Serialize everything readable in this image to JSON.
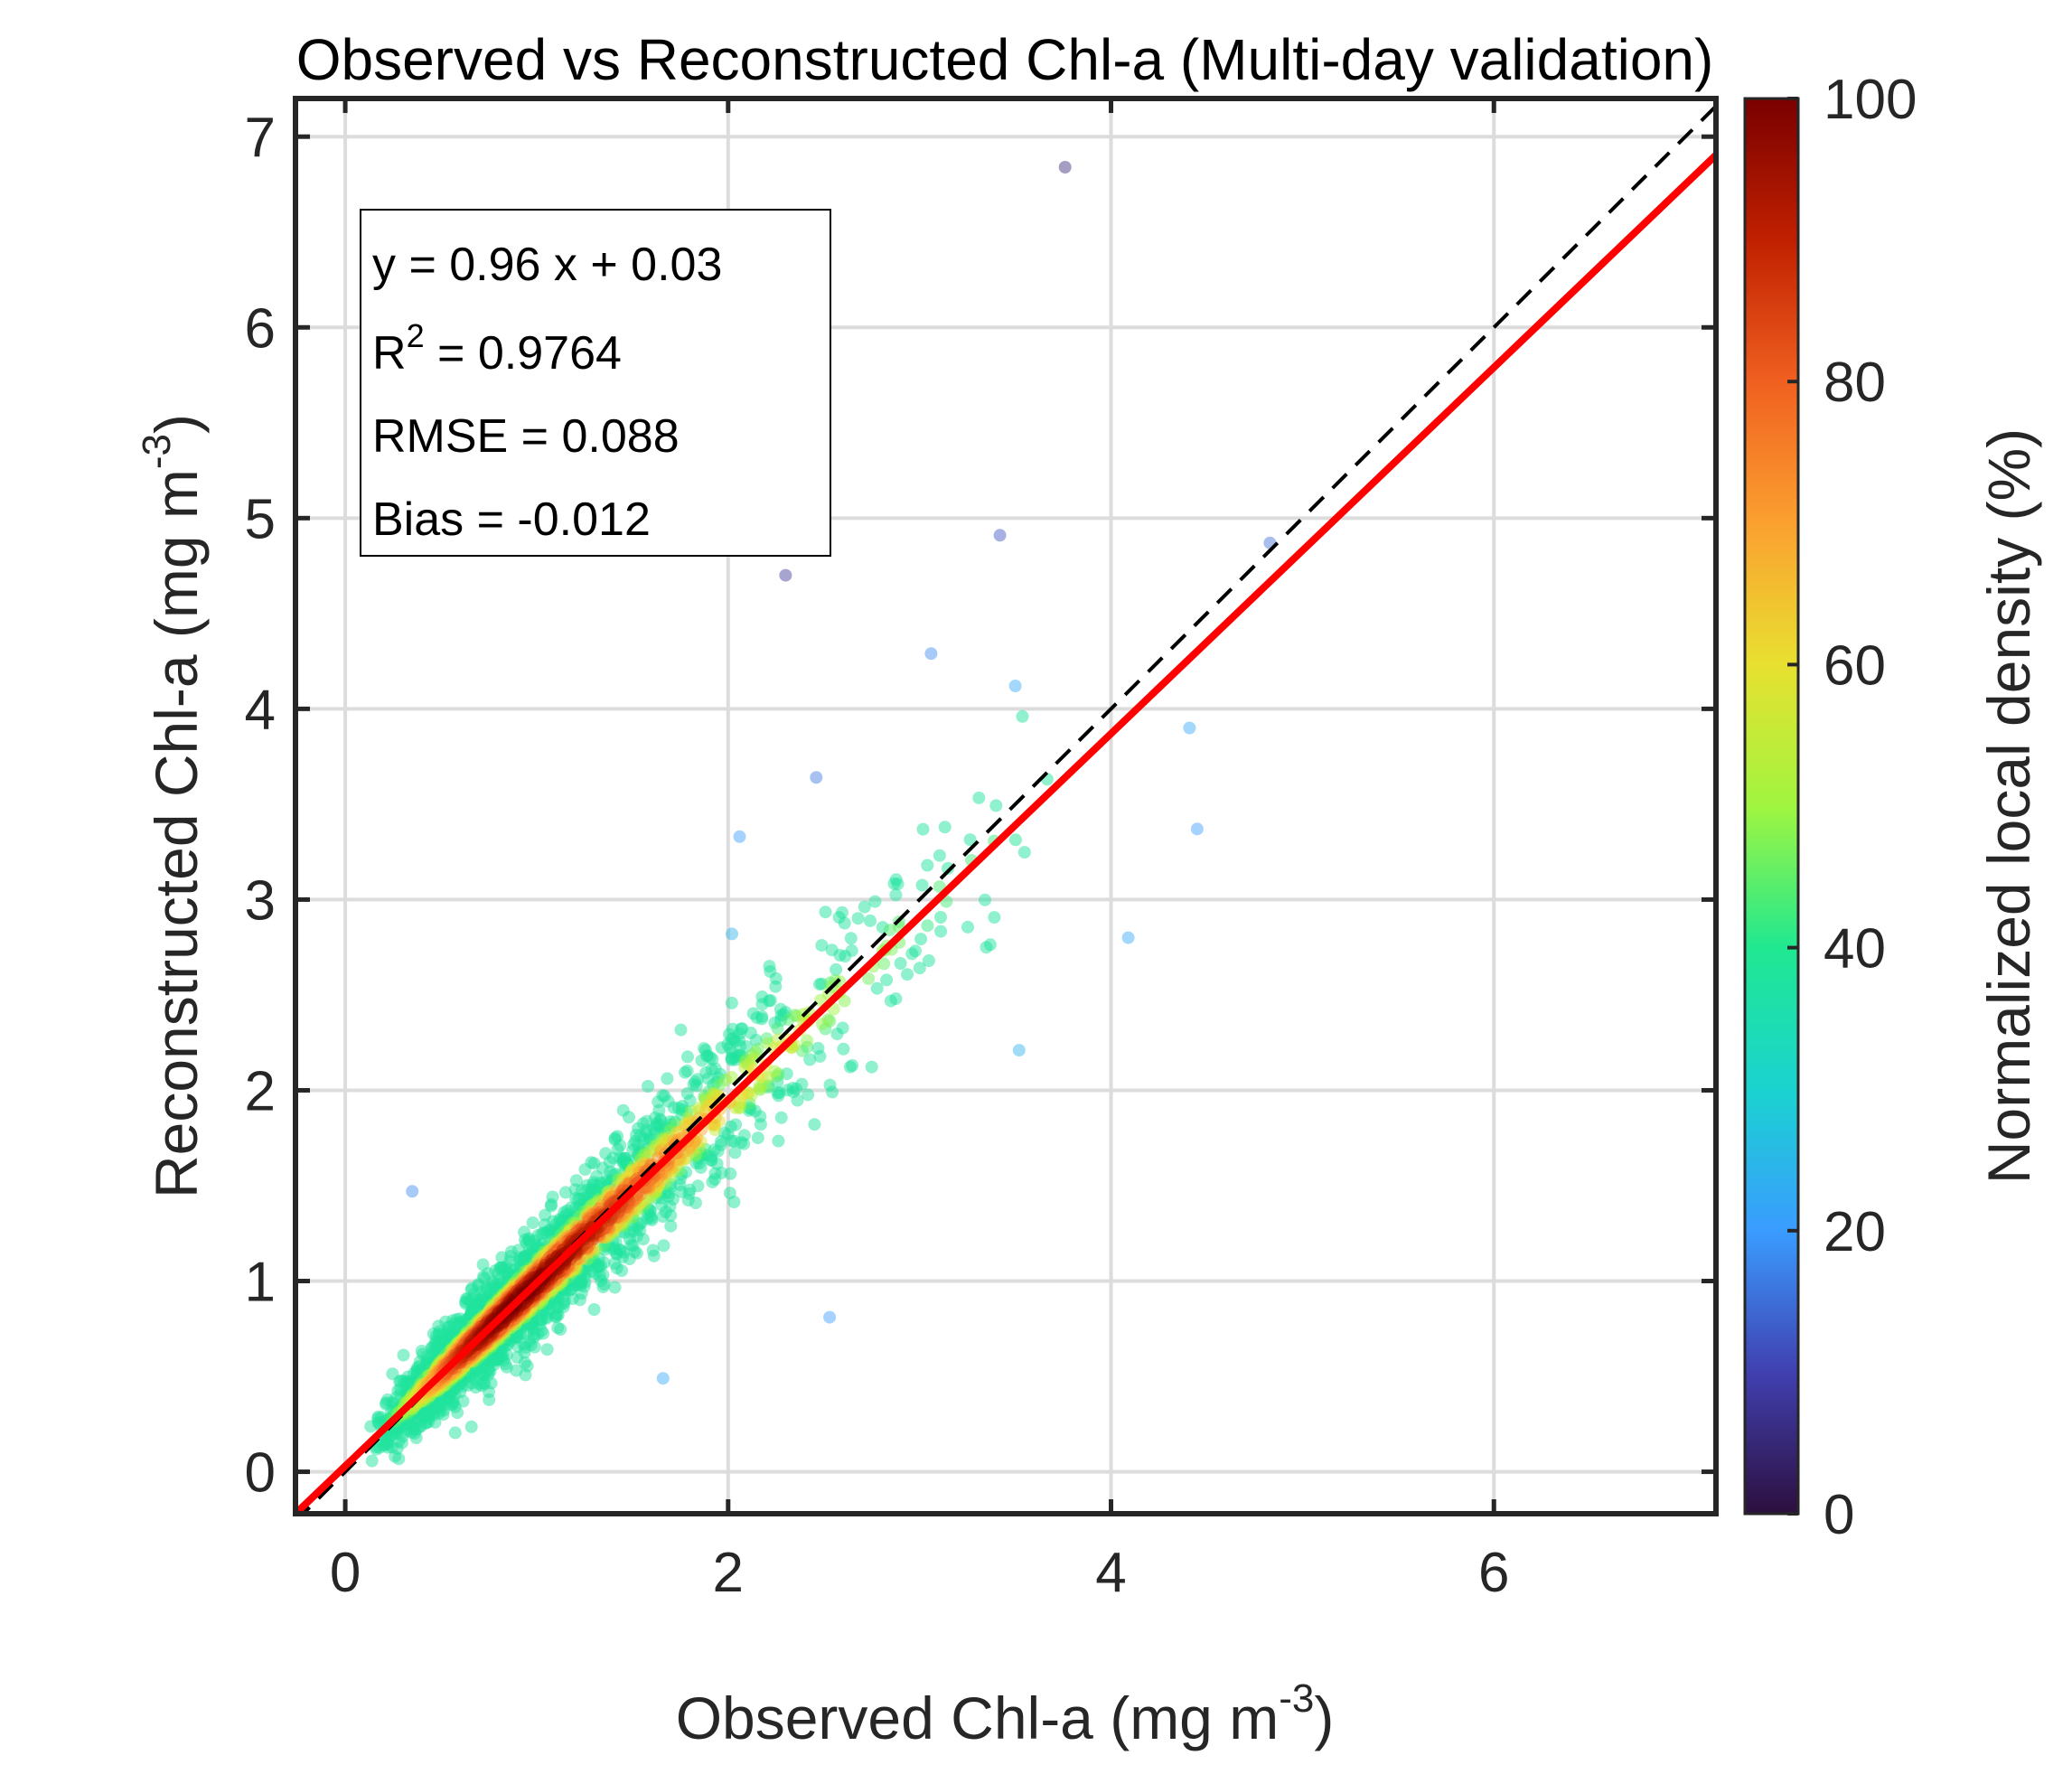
{
  "chart_data": {
    "type": "scatter",
    "title": "Observed vs Reconstructed Chl-a (Multi-day validation)",
    "xlabel": {
      "text": "Observed Chl-a (mg m",
      "sup": "-3",
      "close": ")"
    },
    "ylabel": {
      "text": "Reconstructed Chl-a (mg m",
      "sup": "-3",
      "close": ")"
    },
    "xlim": [
      -0.26,
      7.16
    ],
    "ylim": [
      -0.22,
      7.2
    ],
    "xticks": [
      0,
      2,
      4,
      6
    ],
    "yticks": [
      0,
      1,
      2,
      3,
      4,
      5,
      6,
      7
    ],
    "grid": true,
    "fit_line": {
      "slope": 0.96,
      "intercept": 0.03,
      "color": "#ff0000"
    },
    "one_to_one_line": {
      "slope": 1,
      "intercept": 0,
      "color": "#000000",
      "style": "dashed"
    },
    "stats": {
      "equation": "y = 0.96 x + 0.03",
      "r2_label": "R",
      "r2_sup": "2",
      "r2_value": " = 0.9764",
      "rmse": "RMSE = 0.088",
      "bias": "Bias = -0.012"
    },
    "points_description_values": {
      "x_range": [
        0.1,
        3.6
      ],
      "relationship": "y ≈ 0.96x + 0.03 with scatter"
    },
    "outliers": [
      [
        3.76,
        6.84,
        5
      ],
      [
        3.42,
        4.91,
        12
      ],
      [
        2.3,
        4.7,
        8
      ],
      [
        4.83,
        4.87,
        15
      ],
      [
        3.06,
        4.29,
        18
      ],
      [
        3.5,
        4.12,
        22
      ],
      [
        2.46,
        3.64,
        16
      ],
      [
        2.06,
        3.33,
        20
      ],
      [
        4.09,
        2.8,
        22
      ],
      [
        4.45,
        3.37,
        20
      ],
      [
        0.35,
        1.47,
        18
      ],
      [
        2.53,
        0.81,
        20
      ],
      [
        1.66,
        0.49,
        22
      ],
      [
        3.52,
        2.21,
        24
      ],
      [
        2.02,
        2.82,
        24
      ],
      [
        4.41,
        3.9,
        22
      ]
    ],
    "colorbar": {
      "label": "Normalized local density (%)",
      "range": [
        0,
        100
      ],
      "ticks": [
        "0",
        "20",
        "40",
        "60",
        "80",
        "100"
      ],
      "colormap": [
        "#2d0f3e",
        "#4040b0",
        "#3a9cff",
        "#1ad3d0",
        "#20e890",
        "#a0f540",
        "#e8e030",
        "#fba030",
        "#f06020",
        "#c02000",
        "#7a0000"
      ]
    }
  }
}
